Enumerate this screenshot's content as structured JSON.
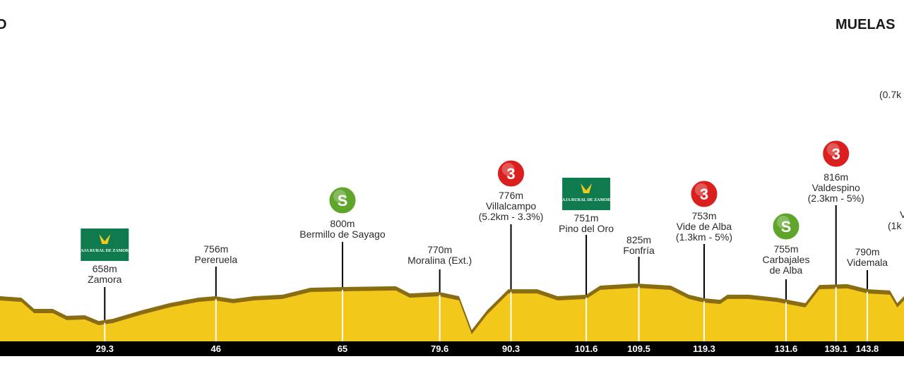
{
  "chart_data": {
    "type": "area",
    "title_fragments": {
      "left": "O",
      "right": "MUELAS"
    },
    "xlabel": "",
    "ylabel": "",
    "x_unit": "km",
    "y_unit": "m",
    "colors": {
      "fill": "#f2c81a",
      "shadow": "#8a6d12",
      "axis_bar": "#000000",
      "cat3": "#d9201f",
      "sprint": "#5fa52a",
      "sponsor": "#0f7a4e"
    },
    "profile": [
      [
        13.6,
        768
      ],
      [
        16.8,
        761
      ],
      [
        18.7,
        708
      ],
      [
        21.5,
        708
      ],
      [
        23.6,
        675
      ],
      [
        26.3,
        678
      ],
      [
        28.4,
        651
      ],
      [
        30.5,
        661
      ],
      [
        34.8,
        701
      ],
      [
        39.0,
        735
      ],
      [
        43.3,
        761
      ],
      [
        45.9,
        768
      ],
      [
        48.6,
        755
      ],
      [
        51.7,
        768
      ],
      [
        56.0,
        775
      ],
      [
        60.2,
        808
      ],
      [
        64.5,
        811
      ],
      [
        73.0,
        815
      ],
      [
        75.1,
        781
      ],
      [
        79.5,
        788
      ],
      [
        82.5,
        768
      ],
      [
        84.4,
        608
      ],
      [
        86.7,
        701
      ],
      [
        89.9,
        801
      ],
      [
        94.2,
        801
      ],
      [
        97.3,
        768
      ],
      [
        101.6,
        775
      ],
      [
        103.7,
        818
      ],
      [
        109.0,
        828
      ],
      [
        114.3,
        818
      ],
      [
        117.0,
        775
      ],
      [
        119.3,
        758
      ],
      [
        121.7,
        751
      ],
      [
        122.8,
        775
      ],
      [
        126.0,
        775
      ],
      [
        130.2,
        761
      ],
      [
        134.5,
        735
      ],
      [
        136.6,
        821
      ],
      [
        140.8,
        825
      ],
      [
        143.9,
        801
      ],
      [
        147.2,
        795
      ],
      [
        148.3,
        735
      ],
      [
        149.3,
        768
      ]
    ],
    "km_ticks": [
      "29.3",
      "46",
      "65",
      "79.6",
      "90.3",
      "101.6",
      "109.5",
      "119.3",
      "131.6",
      "139.1",
      "143.8"
    ],
    "points": [
      {
        "km": 29.3,
        "elev": "658m",
        "name": "Zamora",
        "detail": "",
        "badge": "sponsor"
      },
      {
        "km": 46,
        "elev": "756m",
        "name": "Pereruela",
        "detail": "",
        "badge": ""
      },
      {
        "km": 65,
        "elev": "800m",
        "name": "Bermillo de Sayago",
        "detail": "",
        "badge": "S"
      },
      {
        "km": 79.6,
        "elev": "770m",
        "name": "Moralina (Ext.)",
        "detail": "",
        "badge": ""
      },
      {
        "km": 90.3,
        "elev": "776m",
        "name": "Villalcampo",
        "detail": "(5.2km - 3.3%)",
        "badge": "3"
      },
      {
        "km": 101.6,
        "elev": "751m",
        "name": "Pino del Oro",
        "detail": "",
        "badge": "sponsor"
      },
      {
        "km": 109.5,
        "elev": "825m",
        "name": "Fonfría",
        "detail": "",
        "badge": ""
      },
      {
        "km": 119.3,
        "elev": "753m",
        "name": "Vide de Alba",
        "detail": "(1.3km - 5%)",
        "badge": "3"
      },
      {
        "km": 131.6,
        "elev": "755m",
        "name": "Carbajales",
        "detail": "de Alba",
        "badge": "S"
      },
      {
        "km": 139.1,
        "elev": "816m",
        "name": "Valdespino",
        "detail": "(2.3km - 5%)",
        "badge": "3"
      },
      {
        "km": 143.8,
        "elev": "790m",
        "name": "Videmala",
        "detail": "",
        "badge": ""
      }
    ],
    "edge_fragments": {
      "top_right": "(0.7k",
      "right_name": "V",
      "right_detail": "(1k"
    },
    "sponsor_logo_text": "CAJA RURAL DE ZAMORA"
  }
}
